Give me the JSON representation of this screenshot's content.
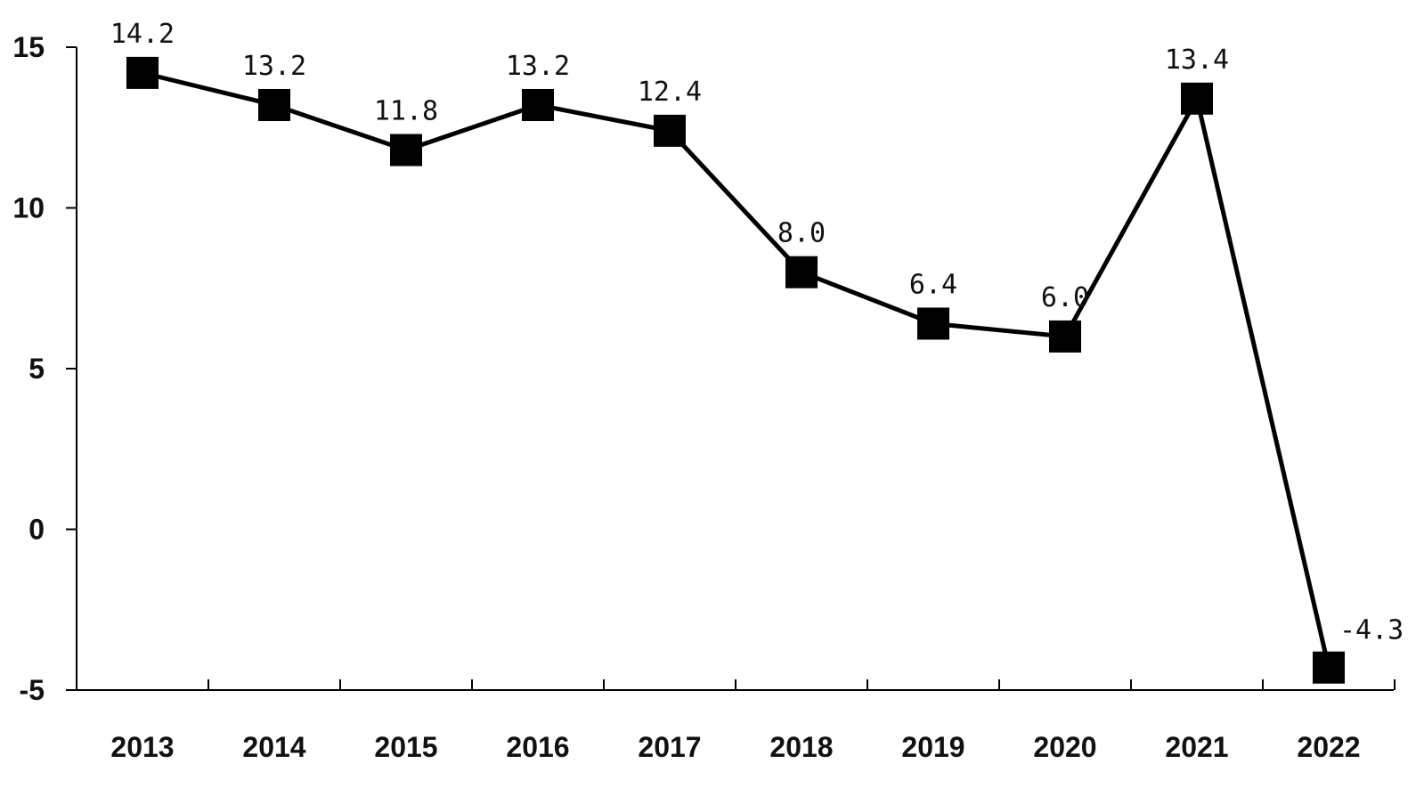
{
  "chart_data": {
    "type": "line",
    "title": "",
    "xlabel": "",
    "ylabel": "",
    "categories": [
      "2013",
      "2014",
      "2015",
      "2016",
      "2017",
      "2018",
      "2019",
      "2020",
      "2021",
      "2022"
    ],
    "series": [
      {
        "values": [
          14.2,
          13.2,
          11.8,
          13.2,
          12.4,
          8.0,
          6.4,
          6.0,
          13.4,
          -4.3
        ],
        "labels": [
          "14.2",
          "13.2",
          "11.8",
          "13.2",
          "12.4",
          "8.0",
          "6.4",
          "6.0",
          "13.4",
          "-4.3"
        ],
        "color": "#000000",
        "marker": "square"
      }
    ],
    "ylim": [
      -5,
      15
    ],
    "yticks": [
      -5,
      0,
      5,
      10,
      15
    ],
    "grid": false,
    "legend": "none"
  }
}
